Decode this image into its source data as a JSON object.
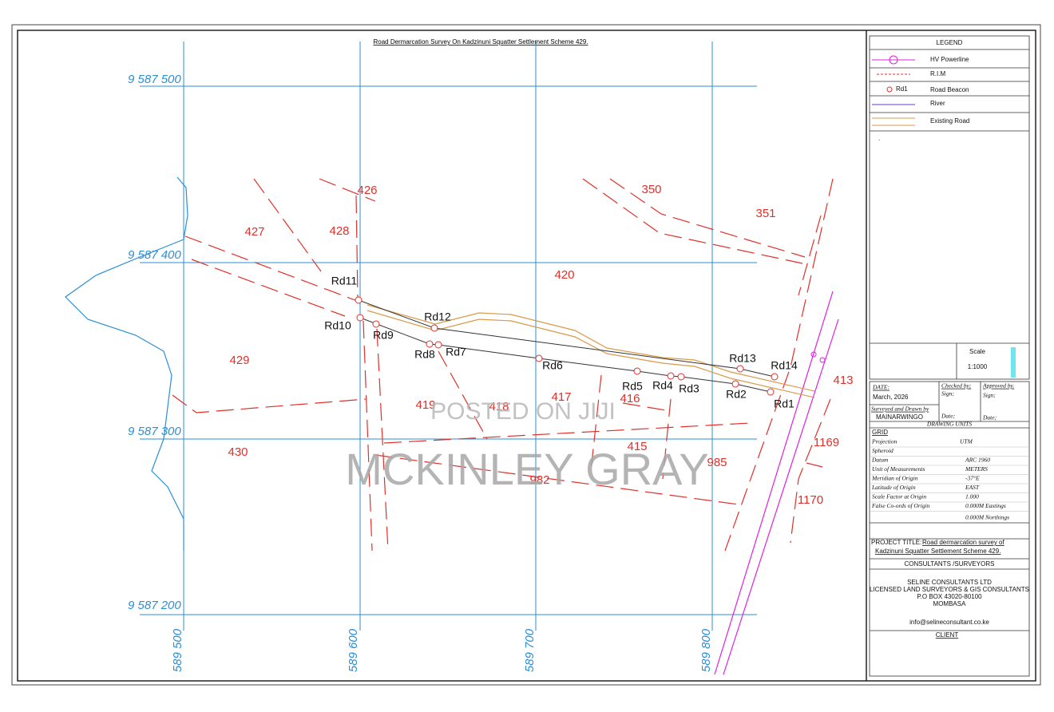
{
  "title": "Road Dermarcation Survey On Kadzinuni Squatter Settlement Scheme 429.",
  "grid": {
    "northings": [
      "9 587 500",
      "9 587 400",
      "9 587 300",
      "9 587 200"
    ],
    "eastings": [
      "589 500",
      "589 600",
      "589 700",
      "589 800"
    ]
  },
  "parcels": [
    "426",
    "350",
    "351",
    "427",
    "428",
    "420",
    "429",
    "419",
    "418",
    "417",
    "416",
    "413",
    "1169",
    "415",
    "430",
    "985",
    "982",
    "1170"
  ],
  "beacons": [
    "Rd1",
    "Rd2",
    "Rd3",
    "Rd4",
    "Rd5",
    "Rd6",
    "Rd7",
    "Rd8",
    "Rd9",
    "Rd10",
    "Rd11",
    "Rd12",
    "Rd13",
    "Rd14"
  ],
  "watermark": [
    "POSTED ON JIJI",
    "MCKINLEY GRAY"
  ],
  "legend": {
    "title": "LEGEND",
    "items": [
      "HV Powerline",
      "R.I.M",
      "Rd1",
      "Road Beacon",
      "River",
      "Existing Road"
    ],
    "mark": "."
  },
  "scale": {
    "label": "Scale",
    "value": "1:1000"
  },
  "signoff": {
    "date_label": "DATE:",
    "date": "March, 2026",
    "checked": "Checked by;",
    "sign1": "Sign;",
    "approved": "Approved by.",
    "sign2": "Sign;",
    "surveyed": "Surveyed and Drawn by",
    "surveyor": "MAINARWINGO",
    "date1": "Date;",
    "date2": "Date;",
    "units": "DRAWING UNITS"
  },
  "grid_info": {
    "title": "GRID",
    "rows": [
      [
        "Projection",
        "UTM"
      ],
      [
        "Spheroid",
        ""
      ],
      [
        "Datum",
        "ARC 1960"
      ],
      [
        "Unit of Measurements",
        "METERS"
      ],
      [
        "Meridian of Origin",
        "-37°E"
      ],
      [
        "Latitude of Origin",
        "EAST"
      ],
      [
        "Scale Factor at Origin",
        "1.000"
      ],
      [
        "False Co-ords of Origin",
        "0.000M Eastings"
      ]
    ],
    "extra": "0.000M Northings"
  },
  "project": {
    "label": "PROJECT TITLE:",
    "line1": "Road dermarcation survey of",
    "line2": "Kadzinuni Squatter Settlement Scheme 429."
  },
  "consultants": {
    "heading": "CONSULTANTS /SURVEYORS",
    "lines": [
      "SELINE CONSULTANTS LTD",
      "LICENSED LAND SURVEYORS & GIS CONSULTANTS",
      "P.O BOX 43020-80100",
      "MOMBASA"
    ],
    "email": "info@selineconsultant.co.ke",
    "client": "CLIENT"
  }
}
